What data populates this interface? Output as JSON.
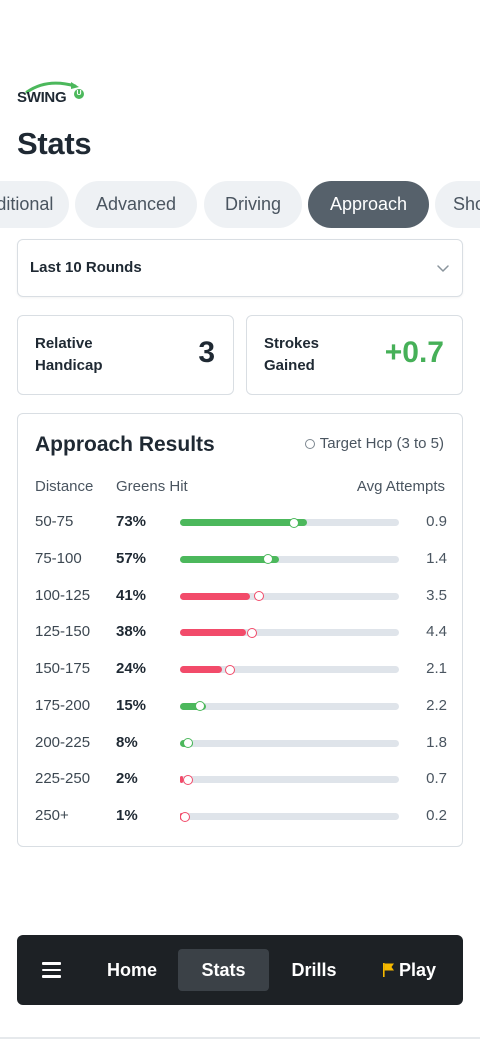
{
  "brand": {
    "name": "SWING",
    "badge": "U"
  },
  "page": {
    "title": "Stats"
  },
  "tabs": [
    {
      "label": "Traditional",
      "active": false
    },
    {
      "label": "Advanced",
      "active": false
    },
    {
      "label": "Driving",
      "active": false
    },
    {
      "label": "Approach",
      "active": true
    },
    {
      "label": "Short Game",
      "active": false
    }
  ],
  "filter": {
    "value": "Last 10 Rounds"
  },
  "summary": {
    "handicap": {
      "label": "Relative Handicap",
      "value": "3"
    },
    "strokes_gained": {
      "label": "Strokes Gained",
      "value": "+0.7"
    }
  },
  "approach": {
    "title": "Approach Results",
    "legend": "Target Hcp (3 to 5)",
    "columns": {
      "distance": "Distance",
      "greens_hit": "Greens Hit",
      "avg_attempts": "Avg Attempts"
    },
    "rows": [
      {
        "distance": "50-75",
        "pct": "73%",
        "value": 0.58,
        "target": 0.52,
        "status": "good",
        "avg": "0.9"
      },
      {
        "distance": "75-100",
        "pct": "57%",
        "value": 0.45,
        "target": 0.4,
        "status": "good",
        "avg": "1.4"
      },
      {
        "distance": "100-125",
        "pct": "41%",
        "value": 0.32,
        "target": 0.36,
        "status": "bad",
        "avg": "3.5"
      },
      {
        "distance": "125-150",
        "pct": "38%",
        "value": 0.3,
        "target": 0.33,
        "status": "bad",
        "avg": "4.4"
      },
      {
        "distance": "150-175",
        "pct": "24%",
        "value": 0.19,
        "target": 0.23,
        "status": "bad",
        "avg": "2.1"
      },
      {
        "distance": "175-200",
        "pct": "15%",
        "value": 0.12,
        "target": 0.09,
        "status": "good",
        "avg": "2.2"
      },
      {
        "distance": "200-225",
        "pct": "8%",
        "value": 0.06,
        "target": 0.035,
        "status": "good",
        "avg": "1.8"
      },
      {
        "distance": "225-250",
        "pct": "2%",
        "value": 0.015,
        "target": 0.035,
        "status": "bad",
        "avg": "0.7"
      },
      {
        "distance": "250+",
        "pct": "1%",
        "value": 0.01,
        "target": 0.025,
        "status": "bad",
        "avg": "0.2"
      }
    ]
  },
  "nav": {
    "home": "Home",
    "stats": "Stats",
    "drills": "Drills",
    "play": "Play",
    "active": "Stats"
  },
  "colors": {
    "good": "#4cb85c",
    "bad": "#f24b6a",
    "nav_bg": "#1d2125",
    "tab_active": "#56616b"
  },
  "icons": {
    "menu": "hamburger-icon",
    "play": "flag-icon",
    "select": "chevron-down-icon"
  }
}
